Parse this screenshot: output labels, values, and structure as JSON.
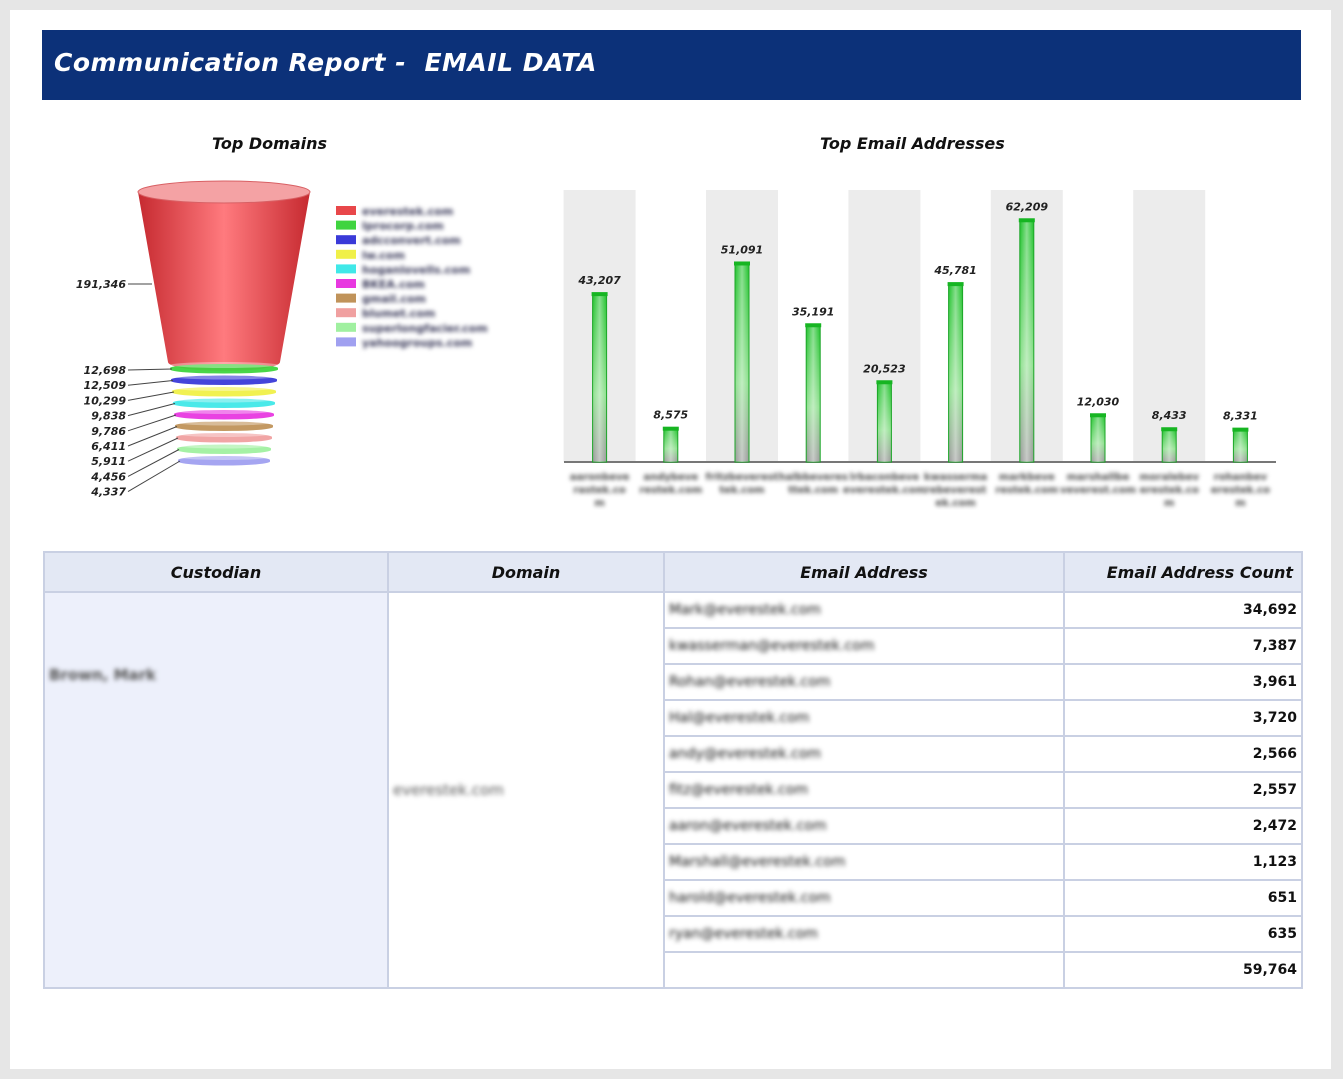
{
  "header": {
    "title": "Communication Report -  EMAIL DATA"
  },
  "colors": {
    "banner": "#0c3179",
    "bar": "#22c22e",
    "bar_bg": "#ececec"
  },
  "charts": {
    "domains_title": "Top Domains",
    "emails_title": "Top Email Addresses"
  },
  "chart_data": [
    {
      "type": "funnel",
      "title": "Top Domains",
      "legend_placement": "right",
      "labels": [
        "everestek.com",
        "lprocorp.com",
        "adcconvert.com",
        "lw.com",
        "hoganlovells.com",
        "BKEA.com",
        "gmail.com",
        "blumet.com",
        "superlongfacier.com",
        "yahoogroups.com"
      ],
      "values": [
        191346,
        12698,
        12509,
        10299,
        9838,
        9786,
        6411,
        5911,
        4456,
        4337
      ],
      "value_labels": [
        "191,346",
        "12,698",
        "12,509",
        "10,299",
        "9,838",
        "9,786",
        "6,411",
        "5,911",
        "4,456",
        "4,337"
      ],
      "colors": [
        "#e8474a",
        "#3fd43f",
        "#3a3ad8",
        "#f0f048",
        "#40e8e8",
        "#e838e0",
        "#c0935a",
        "#f0a0a0",
        "#a0f0a0",
        "#a0a0f0"
      ]
    },
    {
      "type": "bar",
      "title": "Top Email Addresses",
      "categories": [
        "aaronbeve rastek.co m",
        "andybeve restek.com",
        "fritzbeverest tek.com",
        "halbbeveres ttek.com",
        "lrbaconbeve everestek.com",
        "kwasserma rebeverest ek.com",
        "markbeve restek.com",
        "marshallbe veverest.com",
        "moralebev erestek.co m",
        "rohanbev erestek.co m"
      ],
      "values": [
        43207,
        8575,
        51091,
        35191,
        20523,
        45781,
        62209,
        12030,
        8433,
        8331
      ],
      "value_labels": [
        "43,207",
        "8,575",
        "51,091",
        "35,191",
        "20,523",
        "45,781",
        "62,209",
        "12,030",
        "8,433",
        "8,331"
      ],
      "ylim": [
        0,
        70000
      ],
      "grid": "alternating column bands"
    }
  ],
  "table": {
    "headers": [
      "Custodian",
      "Domain",
      "Email Address",
      "Email Address Count"
    ],
    "custodian": "Brown, Mark",
    "domain": "everestek.com",
    "rows": [
      {
        "email": "Mark@everestek.com",
        "count": "34,692"
      },
      {
        "email": "kwasserman@everestek.com",
        "count": "7,387"
      },
      {
        "email": "Rohan@everestek.com",
        "count": "3,961"
      },
      {
        "email": "Hal@everestek.com",
        "count": "3,720"
      },
      {
        "email": "andy@everestek.com",
        "count": "2,566"
      },
      {
        "email": "fitz@everestek.com",
        "count": "2,557"
      },
      {
        "email": "aaron@everestek.com",
        "count": "2,472"
      },
      {
        "email": "Marshall@everestek.com",
        "count": "1,123"
      },
      {
        "email": "harold@everestek.com",
        "count": "651"
      },
      {
        "email": "ryan@everestek.com",
        "count": "635"
      }
    ],
    "total": "59,764"
  }
}
